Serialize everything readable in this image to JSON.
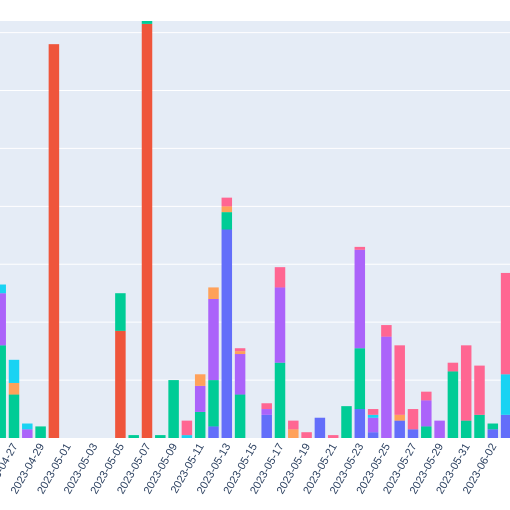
{
  "chart_data": {
    "type": "bar",
    "barmode": "stack",
    "grid": true,
    "plot_background": "#e5ecf6",
    "x_tick_labels": [
      "2023-04-27",
      "2023-04-29",
      "2023-05-01",
      "2023-05-03",
      "2023-05-05",
      "2023-05-07",
      "2023-05-09",
      "2023-05-11",
      "2023-05-13",
      "2023-05-15",
      "2023-05-17",
      "2023-05-19",
      "2023-05-21",
      "2023-05-23",
      "2023-05-25",
      "2023-05-27",
      "2023-05-29",
      "2023-05-31",
      "2023-06-02"
    ],
    "ylim": [
      0,
      72
    ],
    "colors": [
      "#636efa",
      "#ef553b",
      "#00cc96",
      "#ab63fa",
      "#ffa15a",
      "#19d3f3",
      "#ff6692"
    ],
    "bars": [
      {
        "x": "2023-04-25",
        "stack": [
          0,
          0,
          4.5,
          7.5,
          0,
          9.0,
          0
        ]
      },
      {
        "x": "2023-04-26",
        "stack": [
          0,
          0,
          16.0,
          9.0,
          0,
          1.5,
          0
        ]
      },
      {
        "x": "2023-04-27",
        "stack": [
          0,
          0,
          7.5,
          0,
          2.0,
          4.0,
          0
        ]
      },
      {
        "x": "2023-04-28",
        "stack": [
          0,
          0,
          0,
          1.5,
          0,
          1.0,
          0
        ]
      },
      {
        "x": "2023-04-29",
        "stack": [
          0,
          0,
          2.0,
          0,
          0,
          0,
          0
        ]
      },
      {
        "x": "2023-04-30",
        "stack": [
          0,
          68.0,
          0,
          0,
          0,
          0,
          0
        ]
      },
      {
        "x": "2023-05-05",
        "stack": [
          0,
          18.5,
          6.5,
          0,
          0,
          0,
          0
        ]
      },
      {
        "x": "2023-05-06",
        "stack": [
          0,
          0,
          0.5,
          0,
          0,
          0,
          0
        ]
      },
      {
        "x": "2023-05-07",
        "stack": [
          0,
          71.5,
          0.5,
          0,
          0,
          0,
          0
        ]
      },
      {
        "x": "2023-05-08",
        "stack": [
          0,
          0,
          0.5,
          0,
          0,
          0,
          0
        ]
      },
      {
        "x": "2023-05-09",
        "stack": [
          0,
          0,
          10.0,
          0,
          0,
          0,
          0
        ]
      },
      {
        "x": "2023-05-10",
        "stack": [
          0,
          0,
          0,
          0,
          0,
          0.5,
          2.5
        ]
      },
      {
        "x": "2023-05-11",
        "stack": [
          0,
          0,
          4.5,
          4.5,
          2.0,
          0,
          0
        ]
      },
      {
        "x": "2023-05-12",
        "stack": [
          2.0,
          0,
          8.0,
          14.0,
          2.0,
          0,
          0
        ]
      },
      {
        "x": "2023-05-13",
        "stack": [
          36.0,
          0,
          3.0,
          0,
          1.0,
          0,
          1.5
        ]
      },
      {
        "x": "2023-05-14",
        "stack": [
          0,
          0,
          7.5,
          7.0,
          0.5,
          0,
          0.5
        ]
      },
      {
        "x": "2023-05-16",
        "stack": [
          4.0,
          0,
          0,
          1.0,
          0,
          0,
          1.0
        ]
      },
      {
        "x": "2023-05-17",
        "stack": [
          0,
          0,
          13.0,
          13.0,
          0,
          0,
          3.5
        ]
      },
      {
        "x": "2023-05-18",
        "stack": [
          0,
          0,
          0,
          0,
          1.5,
          0,
          1.5
        ]
      },
      {
        "x": "2023-05-19",
        "stack": [
          0,
          0,
          0,
          0,
          0,
          0,
          1.0
        ]
      },
      {
        "x": "2023-05-20",
        "stack": [
          3.5,
          0,
          0,
          0,
          0,
          0,
          0
        ]
      },
      {
        "x": "2023-05-21",
        "stack": [
          0,
          0,
          0,
          0,
          0,
          0,
          0.5
        ]
      },
      {
        "x": "2023-05-22",
        "stack": [
          0,
          0,
          5.5,
          0,
          0,
          0,
          0
        ]
      },
      {
        "x": "2023-05-23",
        "stack": [
          5.0,
          0,
          10.5,
          17.0,
          0,
          0,
          0.5
        ]
      },
      {
        "x": "2023-05-24",
        "stack": [
          1.0,
          0,
          0,
          2.5,
          0,
          0.5,
          1.0
        ]
      },
      {
        "x": "2023-05-25",
        "stack": [
          0,
          0,
          0,
          17.5,
          0,
          0,
          2.0
        ]
      },
      {
        "x": "2023-05-26",
        "stack": [
          3.0,
          0,
          0,
          0,
          1.0,
          0,
          12.0
        ]
      },
      {
        "x": "2023-05-27",
        "stack": [
          1.5,
          0,
          0,
          0,
          0,
          0,
          3.5
        ]
      },
      {
        "x": "2023-05-28",
        "stack": [
          0,
          0,
          2.0,
          4.5,
          0,
          0,
          1.5
        ]
      },
      {
        "x": "2023-05-29",
        "stack": [
          0,
          0,
          0,
          3.0,
          0,
          0,
          0
        ]
      },
      {
        "x": "2023-05-30",
        "stack": [
          0,
          0,
          11.5,
          0,
          0,
          0,
          1.5
        ]
      },
      {
        "x": "2023-05-31",
        "stack": [
          0,
          0,
          3.0,
          0,
          0,
          0,
          13.0
        ]
      },
      {
        "x": "2023-06-01",
        "stack": [
          0,
          0,
          4.0,
          0,
          0,
          0,
          8.5
        ]
      },
      {
        "x": "2023-06-02",
        "stack": [
          1.5,
          0,
          1.0,
          0,
          0,
          0,
          0
        ]
      },
      {
        "x": "2023-06-03",
        "stack": [
          4.0,
          0,
          0,
          0,
          0,
          7.0,
          17.5
        ]
      }
    ]
  }
}
